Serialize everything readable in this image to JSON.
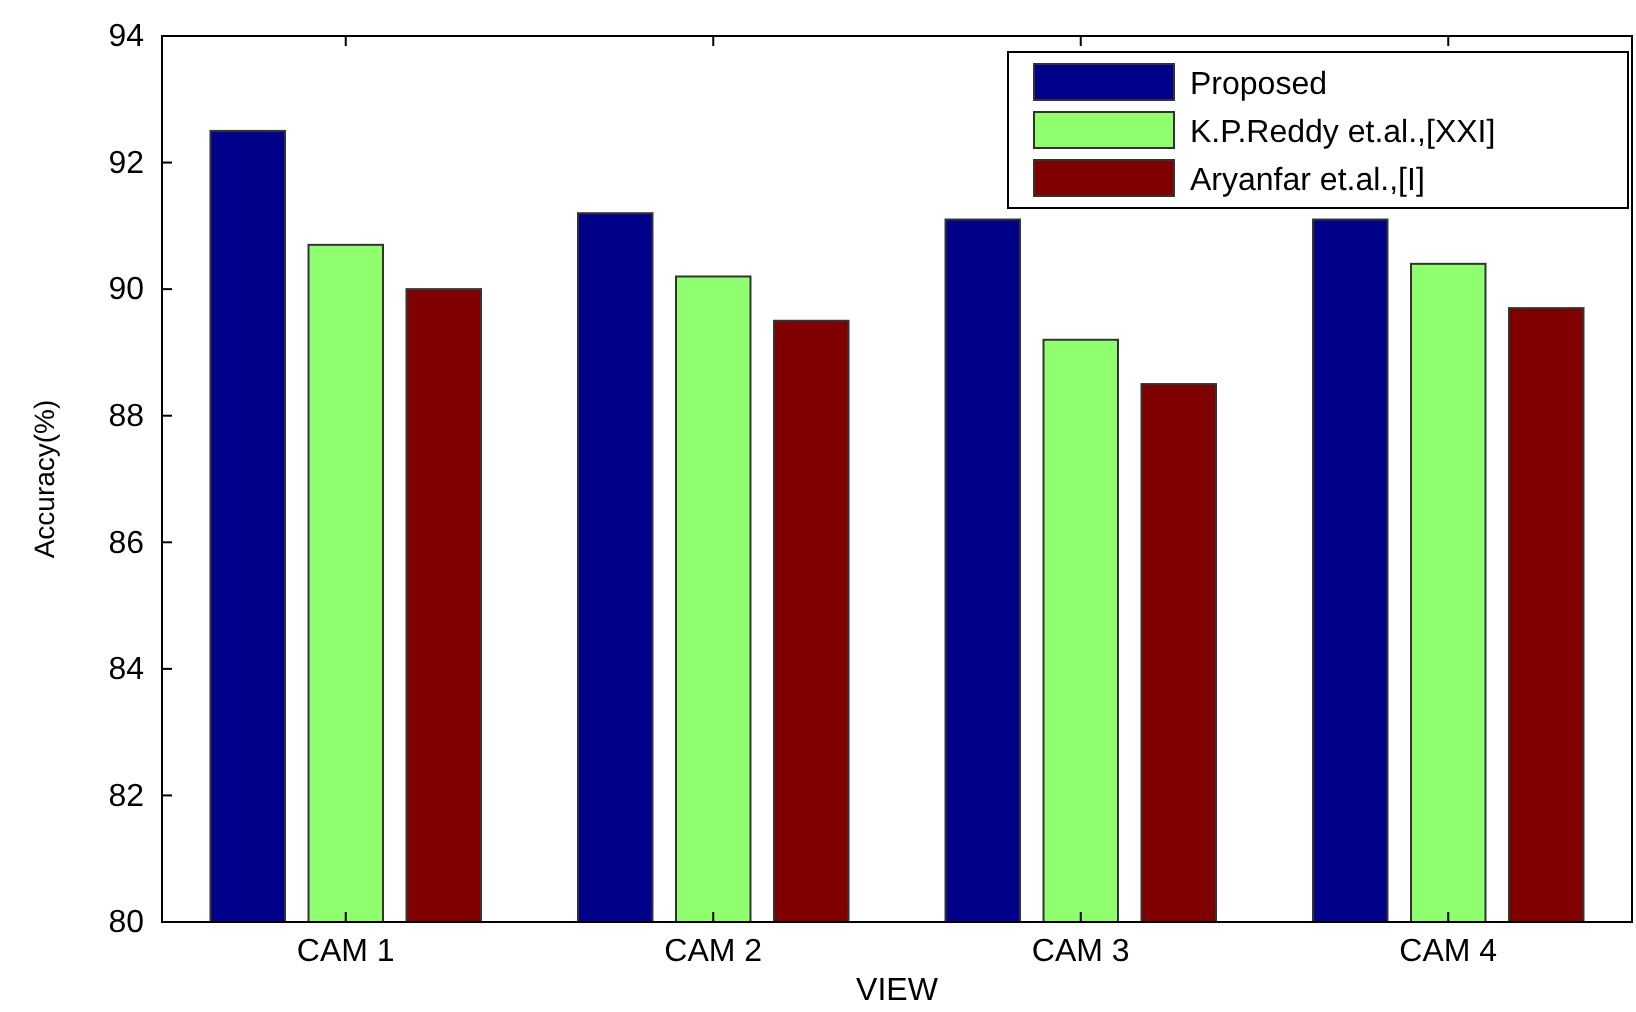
{
  "chart_data": {
    "type": "bar",
    "xlabel": "VIEW",
    "ylabel": "Accuracy(%)",
    "categories": [
      "CAM 1",
      "CAM 2",
      "CAM 3",
      "CAM 4"
    ],
    "series": [
      {
        "name": "Proposed",
        "color": "#00008b",
        "values": [
          92.5,
          91.2,
          91.1,
          91.1
        ]
      },
      {
        "name": "K.P.Reddy et.al.,[XXI]",
        "color": "#90ff6f",
        "values": [
          90.7,
          90.2,
          89.2,
          90.4
        ]
      },
      {
        "name": "Aryanfar et.al.,[I]",
        "color": "#800000",
        "values": [
          90.0,
          89.5,
          88.5,
          89.7
        ]
      }
    ],
    "ylim": [
      80,
      94
    ],
    "yticks": [
      80,
      82,
      84,
      86,
      88,
      90,
      92,
      94
    ],
    "grid": false,
    "legend": "top right"
  }
}
